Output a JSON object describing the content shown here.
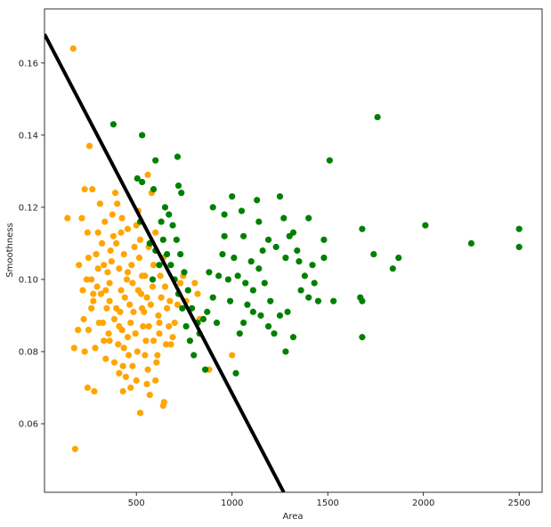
{
  "chart_data": {
    "type": "scatter",
    "title": "",
    "xlabel": "Area",
    "ylabel": "Smoothness",
    "xlim": [
      20,
      2620
    ],
    "ylim": [
      0.041,
      0.175
    ],
    "xticks": [
      500,
      1000,
      1500,
      2000,
      2500
    ],
    "xtick_labels": [
      "500",
      "1000",
      "1500",
      "2000",
      "2500"
    ],
    "yticks": [
      0.06,
      0.08,
      0.1,
      0.12,
      0.14,
      0.16
    ],
    "ytick_labels": [
      "0.06",
      "0.08",
      "0.10",
      "0.12",
      "0.14",
      "0.16"
    ],
    "grid": false,
    "legend": "none",
    "colors": {
      "class_a": "#ffa500",
      "class_b": "#008000",
      "boundary": "#000000"
    },
    "boundary_line": {
      "x": [
        20,
        1270
      ],
      "y": [
        0.168,
        0.041
      ]
    },
    "series": [
      {
        "color": "#ffa500",
        "points": [
          [
            170,
            0.164
          ],
          [
            255,
            0.137
          ],
          [
            180,
            0.053
          ],
          [
            230,
            0.125
          ],
          [
            270,
            0.125
          ],
          [
            215,
            0.117
          ],
          [
            140,
            0.117
          ],
          [
            245,
            0.113
          ],
          [
            200,
            0.104
          ],
          [
            220,
            0.097
          ],
          [
            225,
            0.089
          ],
          [
            195,
            0.086
          ],
          [
            175,
            0.081
          ],
          [
            245,
            0.07
          ],
          [
            280,
            0.069
          ],
          [
            250,
            0.086
          ],
          [
            275,
            0.094
          ],
          [
            265,
            0.1
          ],
          [
            290,
            0.107
          ],
          [
            300,
            0.113
          ],
          [
            310,
            0.121
          ],
          [
            320,
            0.11
          ],
          [
            330,
            0.104
          ],
          [
            315,
            0.096
          ],
          [
            305,
            0.088
          ],
          [
            330,
            0.083
          ],
          [
            340,
            0.078
          ],
          [
            355,
            0.085
          ],
          [
            345,
            0.092
          ],
          [
            360,
            0.099
          ],
          [
            370,
            0.105
          ],
          [
            380,
            0.112
          ],
          [
            375,
            0.118
          ],
          [
            390,
            0.124
          ],
          [
            400,
            0.121
          ],
          [
            395,
            0.11
          ],
          [
            410,
            0.103
          ],
          [
            420,
            0.097
          ],
          [
            415,
            0.091
          ],
          [
            425,
            0.086
          ],
          [
            435,
            0.081
          ],
          [
            430,
            0.076
          ],
          [
            445,
            0.073
          ],
          [
            460,
            0.079
          ],
          [
            455,
            0.084
          ],
          [
            470,
            0.088
          ],
          [
            465,
            0.093
          ],
          [
            480,
            0.099
          ],
          [
            475,
            0.104
          ],
          [
            490,
            0.109
          ],
          [
            500,
            0.115
          ],
          [
            510,
            0.119
          ],
          [
            520,
            0.111
          ],
          [
            515,
            0.106
          ],
          [
            530,
            0.101
          ],
          [
            525,
            0.096
          ],
          [
            540,
            0.091
          ],
          [
            535,
            0.087
          ],
          [
            550,
            0.083
          ],
          [
            545,
            0.079
          ],
          [
            560,
            0.075
          ],
          [
            555,
            0.071
          ],
          [
            570,
            0.068
          ],
          [
            520,
            0.063
          ],
          [
            640,
            0.065
          ],
          [
            645,
            0.066
          ],
          [
            600,
            0.072
          ],
          [
            610,
            0.079
          ],
          [
            620,
            0.085
          ],
          [
            615,
            0.09
          ],
          [
            630,
            0.095
          ],
          [
            625,
            0.101
          ],
          [
            640,
            0.106
          ],
          [
            600,
            0.113
          ],
          [
            580,
            0.124
          ],
          [
            560,
            0.129
          ],
          [
            660,
            0.092
          ],
          [
            670,
            0.087
          ],
          [
            680,
            0.082
          ],
          [
            690,
            0.084
          ],
          [
            700,
            0.088
          ],
          [
            715,
            0.093
          ],
          [
            730,
            0.099
          ],
          [
            745,
            0.101
          ],
          [
            760,
            0.094
          ],
          [
            805,
            0.099
          ],
          [
            820,
            0.096
          ],
          [
            830,
            0.089
          ],
          [
            880,
            0.075
          ],
          [
            1000,
            0.079
          ],
          [
            350,
            0.102
          ],
          [
            360,
            0.094
          ],
          [
            385,
            0.089
          ],
          [
            405,
            0.082
          ],
          [
            440,
            0.095
          ],
          [
            450,
            0.1
          ],
          [
            485,
            0.091
          ],
          [
            495,
            0.085
          ],
          [
            505,
            0.08
          ],
          [
            565,
            0.087
          ],
          [
            575,
            0.093
          ],
          [
            585,
            0.098
          ],
          [
            590,
            0.083
          ],
          [
            605,
            0.077
          ],
          [
            335,
            0.116
          ],
          [
            365,
            0.108
          ],
          [
            425,
            0.117
          ],
          [
            455,
            0.114
          ],
          [
            435,
            0.107
          ],
          [
            285,
            0.081
          ],
          [
            265,
            0.092
          ],
          [
            295,
            0.098
          ],
          [
            325,
            0.088
          ],
          [
            395,
            0.092
          ],
          [
            410,
            0.087
          ],
          [
            545,
            0.101
          ],
          [
            565,
            0.109
          ],
          [
            590,
            0.104
          ],
          [
            650,
            0.098
          ],
          [
            675,
            0.094
          ],
          [
            410,
            0.074
          ],
          [
            430,
            0.069
          ],
          [
            470,
            0.07
          ],
          [
            500,
            0.072
          ],
          [
            385,
            0.077
          ],
          [
            230,
            0.08
          ],
          [
            250,
            0.106
          ],
          [
            300,
            0.103
          ],
          [
            340,
            0.097
          ],
          [
            360,
            0.083
          ],
          [
            420,
            0.113
          ],
          [
            455,
            0.102
          ],
          [
            510,
            0.097
          ],
          [
            530,
            0.092
          ],
          [
            555,
            0.095
          ],
          [
            620,
            0.088
          ],
          [
            655,
            0.082
          ],
          [
            240,
            0.1
          ],
          [
            275,
            0.096
          ],
          [
            480,
            0.076
          ]
        ]
      },
      {
        "color": "#008000",
        "points": [
          [
            380,
            0.143
          ],
          [
            530,
            0.14
          ],
          [
            600,
            0.133
          ],
          [
            715,
            0.134
          ],
          [
            505,
            0.128
          ],
          [
            530,
            0.127
          ],
          [
            590,
            0.125
          ],
          [
            720,
            0.126
          ],
          [
            735,
            0.124
          ],
          [
            1000,
            0.123
          ],
          [
            1130,
            0.122
          ],
          [
            1250,
            0.123
          ],
          [
            900,
            0.12
          ],
          [
            960,
            0.118
          ],
          [
            1050,
            0.119
          ],
          [
            1140,
            0.116
          ],
          [
            1270,
            0.117
          ],
          [
            1400,
            0.117
          ],
          [
            1760,
            0.145
          ],
          [
            1510,
            0.133
          ],
          [
            1680,
            0.114
          ],
          [
            2010,
            0.115
          ],
          [
            2250,
            0.11
          ],
          [
            2500,
            0.114
          ],
          [
            2500,
            0.109
          ],
          [
            1740,
            0.107
          ],
          [
            1840,
            0.103
          ],
          [
            1870,
            0.106
          ],
          [
            1480,
            0.111
          ],
          [
            1480,
            0.106
          ],
          [
            1320,
            0.113
          ],
          [
            1280,
            0.106
          ],
          [
            1350,
            0.105
          ],
          [
            1420,
            0.104
          ],
          [
            1380,
            0.101
          ],
          [
            1360,
            0.097
          ],
          [
            1400,
            0.095
          ],
          [
            1450,
            0.094
          ],
          [
            1530,
            0.094
          ],
          [
            1670,
            0.095
          ],
          [
            1680,
            0.094
          ],
          [
            1680,
            0.084
          ],
          [
            1290,
            0.091
          ],
          [
            1250,
            0.09
          ],
          [
            1220,
            0.085
          ],
          [
            1280,
            0.08
          ],
          [
            1320,
            0.084
          ],
          [
            1200,
            0.094
          ],
          [
            1170,
            0.099
          ],
          [
            1140,
            0.103
          ],
          [
            1110,
            0.097
          ],
          [
            1080,
            0.093
          ],
          [
            1060,
            0.088
          ],
          [
            1040,
            0.085
          ],
          [
            1020,
            0.074
          ],
          [
            980,
            0.1
          ],
          [
            950,
            0.107
          ],
          [
            930,
            0.101
          ],
          [
            900,
            0.095
          ],
          [
            870,
            0.091
          ],
          [
            850,
            0.089
          ],
          [
            820,
            0.088
          ],
          [
            790,
            0.092
          ],
          [
            770,
            0.097
          ],
          [
            750,
            0.102
          ],
          [
            730,
            0.107
          ],
          [
            710,
            0.111
          ],
          [
            690,
            0.115
          ],
          [
            670,
            0.118
          ],
          [
            650,
            0.12
          ],
          [
            630,
            0.116
          ],
          [
            640,
            0.111
          ],
          [
            660,
            0.107
          ],
          [
            680,
            0.104
          ],
          [
            700,
            0.1
          ],
          [
            720,
            0.096
          ],
          [
            740,
            0.092
          ],
          [
            760,
            0.087
          ],
          [
            780,
            0.083
          ],
          [
            800,
            0.079
          ],
          [
            830,
            0.085
          ],
          [
            860,
            0.075
          ],
          [
            1010,
            0.106
          ],
          [
            1030,
            0.101
          ],
          [
            1070,
            0.099
          ],
          [
            1100,
            0.105
          ],
          [
            1160,
            0.108
          ],
          [
            1190,
            0.111
          ],
          [
            1230,
            0.109
          ],
          [
            1300,
            0.112
          ],
          [
            1340,
            0.108
          ],
          [
            1430,
            0.099
          ],
          [
            1110,
            0.091
          ],
          [
            1150,
            0.09
          ],
          [
            1190,
            0.087
          ],
          [
            920,
            0.088
          ],
          [
            880,
            0.102
          ],
          [
            990,
            0.094
          ],
          [
            960,
            0.112
          ],
          [
            1060,
            0.112
          ],
          [
            600,
            0.108
          ],
          [
            620,
            0.104
          ],
          [
            570,
            0.11
          ],
          [
            585,
            0.1
          ],
          [
            520,
            0.116
          ]
        ]
      }
    ]
  }
}
